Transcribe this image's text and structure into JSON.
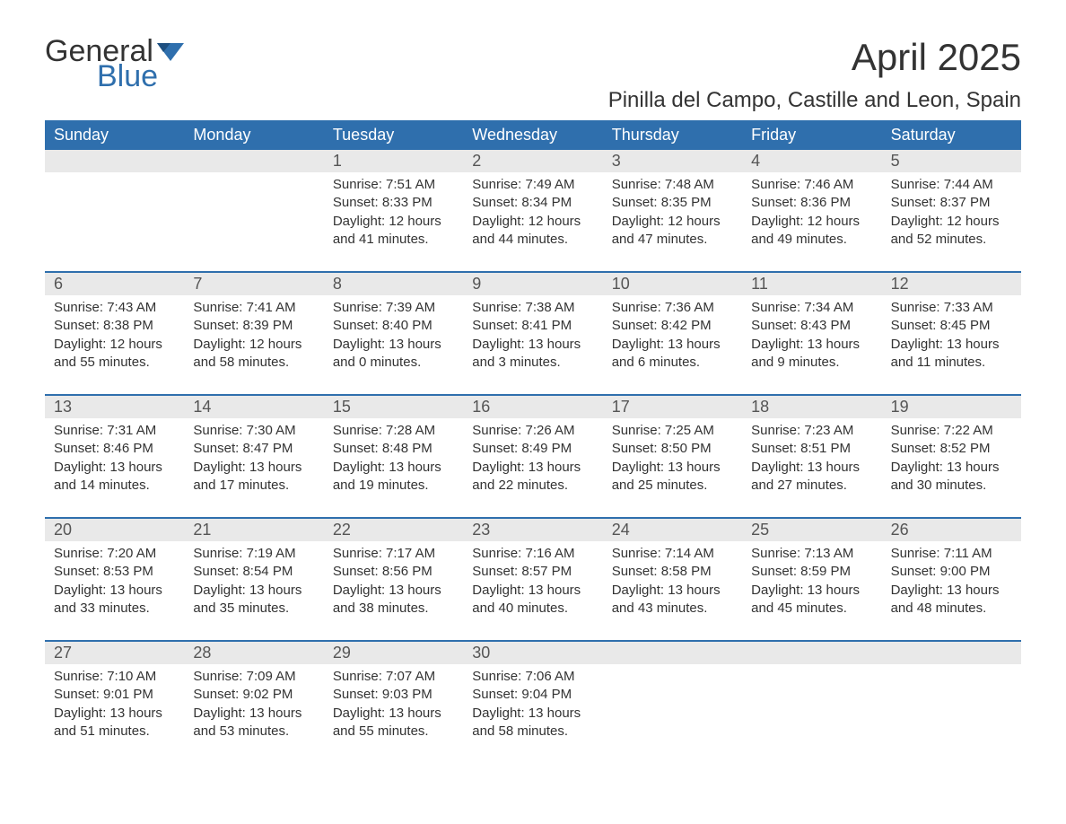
{
  "brand": {
    "word1": "General",
    "word2": "Blue"
  },
  "title": "April 2025",
  "location": "Pinilla del Campo, Castille and Leon, Spain",
  "colors": {
    "header_bg": "#2f6fad",
    "header_text": "#ffffff",
    "daynum_bg": "#e9e9e9",
    "border": "#2f6fad",
    "text": "#333333",
    "brand_blue": "#2f6fad"
  },
  "dayNames": [
    "Sunday",
    "Monday",
    "Tuesday",
    "Wednesday",
    "Thursday",
    "Friday",
    "Saturday"
  ],
  "weeks": [
    [
      null,
      null,
      {
        "n": "1",
        "sr": "Sunrise: 7:51 AM",
        "ss": "Sunset: 8:33 PM",
        "d1": "Daylight: 12 hours",
        "d2": "and 41 minutes."
      },
      {
        "n": "2",
        "sr": "Sunrise: 7:49 AM",
        "ss": "Sunset: 8:34 PM",
        "d1": "Daylight: 12 hours",
        "d2": "and 44 minutes."
      },
      {
        "n": "3",
        "sr": "Sunrise: 7:48 AM",
        "ss": "Sunset: 8:35 PM",
        "d1": "Daylight: 12 hours",
        "d2": "and 47 minutes."
      },
      {
        "n": "4",
        "sr": "Sunrise: 7:46 AM",
        "ss": "Sunset: 8:36 PM",
        "d1": "Daylight: 12 hours",
        "d2": "and 49 minutes."
      },
      {
        "n": "5",
        "sr": "Sunrise: 7:44 AM",
        "ss": "Sunset: 8:37 PM",
        "d1": "Daylight: 12 hours",
        "d2": "and 52 minutes."
      }
    ],
    [
      {
        "n": "6",
        "sr": "Sunrise: 7:43 AM",
        "ss": "Sunset: 8:38 PM",
        "d1": "Daylight: 12 hours",
        "d2": "and 55 minutes."
      },
      {
        "n": "7",
        "sr": "Sunrise: 7:41 AM",
        "ss": "Sunset: 8:39 PM",
        "d1": "Daylight: 12 hours",
        "d2": "and 58 minutes."
      },
      {
        "n": "8",
        "sr": "Sunrise: 7:39 AM",
        "ss": "Sunset: 8:40 PM",
        "d1": "Daylight: 13 hours",
        "d2": "and 0 minutes."
      },
      {
        "n": "9",
        "sr": "Sunrise: 7:38 AM",
        "ss": "Sunset: 8:41 PM",
        "d1": "Daylight: 13 hours",
        "d2": "and 3 minutes."
      },
      {
        "n": "10",
        "sr": "Sunrise: 7:36 AM",
        "ss": "Sunset: 8:42 PM",
        "d1": "Daylight: 13 hours",
        "d2": "and 6 minutes."
      },
      {
        "n": "11",
        "sr": "Sunrise: 7:34 AM",
        "ss": "Sunset: 8:43 PM",
        "d1": "Daylight: 13 hours",
        "d2": "and 9 minutes."
      },
      {
        "n": "12",
        "sr": "Sunrise: 7:33 AM",
        "ss": "Sunset: 8:45 PM",
        "d1": "Daylight: 13 hours",
        "d2": "and 11 minutes."
      }
    ],
    [
      {
        "n": "13",
        "sr": "Sunrise: 7:31 AM",
        "ss": "Sunset: 8:46 PM",
        "d1": "Daylight: 13 hours",
        "d2": "and 14 minutes."
      },
      {
        "n": "14",
        "sr": "Sunrise: 7:30 AM",
        "ss": "Sunset: 8:47 PM",
        "d1": "Daylight: 13 hours",
        "d2": "and 17 minutes."
      },
      {
        "n": "15",
        "sr": "Sunrise: 7:28 AM",
        "ss": "Sunset: 8:48 PM",
        "d1": "Daylight: 13 hours",
        "d2": "and 19 minutes."
      },
      {
        "n": "16",
        "sr": "Sunrise: 7:26 AM",
        "ss": "Sunset: 8:49 PM",
        "d1": "Daylight: 13 hours",
        "d2": "and 22 minutes."
      },
      {
        "n": "17",
        "sr": "Sunrise: 7:25 AM",
        "ss": "Sunset: 8:50 PM",
        "d1": "Daylight: 13 hours",
        "d2": "and 25 minutes."
      },
      {
        "n": "18",
        "sr": "Sunrise: 7:23 AM",
        "ss": "Sunset: 8:51 PM",
        "d1": "Daylight: 13 hours",
        "d2": "and 27 minutes."
      },
      {
        "n": "19",
        "sr": "Sunrise: 7:22 AM",
        "ss": "Sunset: 8:52 PM",
        "d1": "Daylight: 13 hours",
        "d2": "and 30 minutes."
      }
    ],
    [
      {
        "n": "20",
        "sr": "Sunrise: 7:20 AM",
        "ss": "Sunset: 8:53 PM",
        "d1": "Daylight: 13 hours",
        "d2": "and 33 minutes."
      },
      {
        "n": "21",
        "sr": "Sunrise: 7:19 AM",
        "ss": "Sunset: 8:54 PM",
        "d1": "Daylight: 13 hours",
        "d2": "and 35 minutes."
      },
      {
        "n": "22",
        "sr": "Sunrise: 7:17 AM",
        "ss": "Sunset: 8:56 PM",
        "d1": "Daylight: 13 hours",
        "d2": "and 38 minutes."
      },
      {
        "n": "23",
        "sr": "Sunrise: 7:16 AM",
        "ss": "Sunset: 8:57 PM",
        "d1": "Daylight: 13 hours",
        "d2": "and 40 minutes."
      },
      {
        "n": "24",
        "sr": "Sunrise: 7:14 AM",
        "ss": "Sunset: 8:58 PM",
        "d1": "Daylight: 13 hours",
        "d2": "and 43 minutes."
      },
      {
        "n": "25",
        "sr": "Sunrise: 7:13 AM",
        "ss": "Sunset: 8:59 PM",
        "d1": "Daylight: 13 hours",
        "d2": "and 45 minutes."
      },
      {
        "n": "26",
        "sr": "Sunrise: 7:11 AM",
        "ss": "Sunset: 9:00 PM",
        "d1": "Daylight: 13 hours",
        "d2": "and 48 minutes."
      }
    ],
    [
      {
        "n": "27",
        "sr": "Sunrise: 7:10 AM",
        "ss": "Sunset: 9:01 PM",
        "d1": "Daylight: 13 hours",
        "d2": "and 51 minutes."
      },
      {
        "n": "28",
        "sr": "Sunrise: 7:09 AM",
        "ss": "Sunset: 9:02 PM",
        "d1": "Daylight: 13 hours",
        "d2": "and 53 minutes."
      },
      {
        "n": "29",
        "sr": "Sunrise: 7:07 AM",
        "ss": "Sunset: 9:03 PM",
        "d1": "Daylight: 13 hours",
        "d2": "and 55 minutes."
      },
      {
        "n": "30",
        "sr": "Sunrise: 7:06 AM",
        "ss": "Sunset: 9:04 PM",
        "d1": "Daylight: 13 hours",
        "d2": "and 58 minutes."
      },
      null,
      null,
      null
    ]
  ]
}
